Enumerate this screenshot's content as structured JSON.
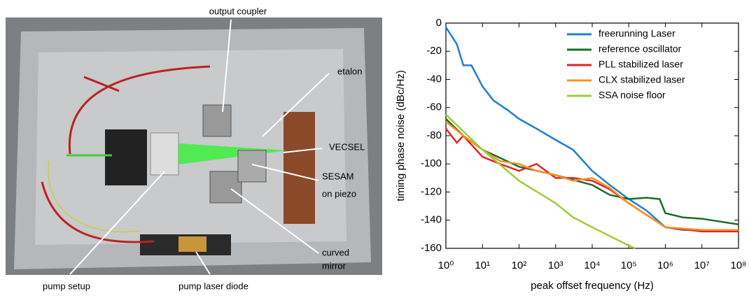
{
  "photo": {
    "labels": [
      "output coupler",
      "etalon",
      "VECSEL",
      "SESAM",
      "on piezo",
      "curved",
      "mirror",
      "pump setup",
      "pump laser diode"
    ]
  },
  "chart_data": {
    "type": "line",
    "x_label": "peak offset frequency (Hz)",
    "y_label": "timing phase noise (dBc/Hz)",
    "xscale": "log",
    "xlim": [
      1,
      100000000
    ],
    "xticks": [
      {
        "value": 1,
        "label": "10⁰"
      },
      {
        "value": 10,
        "label": "10¹"
      },
      {
        "value": 100,
        "label": "10²"
      },
      {
        "value": 1000,
        "label": "10³"
      },
      {
        "value": 10000,
        "label": "10⁴"
      },
      {
        "value": 100000,
        "label": "10⁵"
      },
      {
        "value": 1000000,
        "label": "10⁶"
      },
      {
        "value": 10000000,
        "label": "10⁷"
      },
      {
        "value": 100000000,
        "label": "10⁸"
      }
    ],
    "ylim": [
      -160,
      0
    ],
    "yticks": [
      -160,
      -140,
      -120,
      -100,
      -80,
      -60,
      -40,
      -20,
      0
    ],
    "legend": "upper right",
    "series": [
      {
        "name": "freerunning Laser",
        "color": "#1f7fd6",
        "x": [
          1,
          1.5,
          2,
          3,
          5,
          10,
          20,
          50,
          100,
          300,
          1000,
          3000,
          10000,
          30000,
          100000,
          300000,
          1000000,
          3000000,
          10000000,
          100000000
        ],
        "values": [
          -3,
          -10,
          -15,
          -30,
          -30,
          -45,
          -55,
          -62,
          -68,
          -75,
          -83,
          -90,
          -105,
          -115,
          -125,
          -133,
          -145,
          -147,
          -147,
          -147
        ]
      },
      {
        "name": "reference oscillator",
        "color": "#1c6b2c",
        "x": [
          1,
          3,
          10,
          100,
          1000,
          10000,
          30000,
          100000,
          300000,
          700000,
          1000000,
          3000000,
          10000000,
          100000000
        ],
        "values": [
          -68,
          -80,
          -90,
          -102,
          -108,
          -115,
          -122,
          -125,
          -124,
          -125,
          -135,
          -138,
          -139,
          -143
        ]
      },
      {
        "name": "PLL stabilized laser",
        "color": "#e2232a",
        "x": [
          1,
          2,
          3,
          10,
          30,
          100,
          300,
          1000,
          3000,
          10000,
          30000,
          100000,
          1000000,
          10000000,
          100000000
        ],
        "values": [
          -75,
          -85,
          -80,
          -95,
          -100,
          -105,
          -100,
          -110,
          -110,
          -112,
          -118,
          -128,
          -145,
          -148,
          -148
        ]
      },
      {
        "name": "CLX stabilized laser",
        "color": "#f7931e",
        "x": [
          1,
          3,
          10,
          30,
          100,
          300,
          1000,
          3000,
          10000,
          30000,
          100000,
          1000000,
          10000000,
          100000000
        ],
        "values": [
          -70,
          -80,
          -90,
          -98,
          -100,
          -105,
          -108,
          -112,
          -110,
          -117,
          -128,
          -145,
          -147,
          -147
        ]
      },
      {
        "name": "SSA noise floor",
        "color": "#9ccc3c",
        "x": [
          1,
          10,
          100,
          1000,
          3000,
          10000,
          100000,
          150000
        ],
        "values": [
          -65,
          -90,
          -112,
          -128,
          -138,
          -145,
          -158,
          -160
        ]
      }
    ]
  }
}
